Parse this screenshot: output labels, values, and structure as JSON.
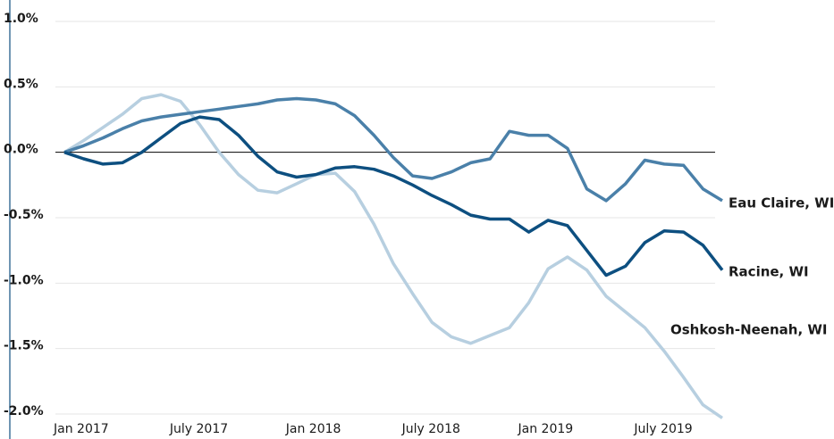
{
  "chart_data": {
    "type": "line",
    "categories": [
      "Jan 2017",
      null,
      null,
      null,
      null,
      null,
      "July 2017",
      null,
      null,
      null,
      null,
      null,
      "Jan 2018",
      null,
      null,
      null,
      null,
      null,
      "July 2018",
      null,
      null,
      null,
      null,
      null,
      "Jan 2019",
      null,
      null,
      null,
      null,
      null,
      "July 2019",
      null,
      null,
      null,
      null
    ],
    "series": [
      {
        "name": "Eau Claire, WI",
        "color": "#4a80a9",
        "values": [
          0,
          0.05,
          0.11,
          0.18,
          0.24,
          0.27,
          0.29,
          0.31,
          0.33,
          0.35,
          0.37,
          0.4,
          0.41,
          0.4,
          0.37,
          0.28,
          0.13,
          -0.04,
          -0.18,
          -0.2,
          -0.15,
          -0.08,
          -0.05,
          0.16,
          0.13,
          0.13,
          0.03,
          -0.28,
          -0.37,
          -0.24,
          -0.06,
          -0.09,
          -0.1,
          -0.28,
          -0.37
        ]
      },
      {
        "name": "Racine, WI",
        "color": "#0d4f80",
        "values": [
          0,
          -0.05,
          -0.09,
          -0.08,
          0,
          0.11,
          0.22,
          0.27,
          0.25,
          0.13,
          -0.03,
          -0.15,
          -0.19,
          -0.17,
          -0.12,
          -0.11,
          -0.13,
          -0.18,
          -0.25,
          -0.33,
          -0.4,
          -0.48,
          -0.51,
          -0.51,
          -0.61,
          -0.52,
          -0.56,
          -0.75,
          -0.94,
          -0.87,
          -0.69,
          -0.6,
          -0.61,
          -0.71,
          -0.9
        ]
      },
      {
        "name": "Oshkosh-Neenah, WI",
        "color": "#b7cfe0",
        "values": [
          0,
          0.09,
          0.19,
          0.29,
          0.41,
          0.44,
          0.39,
          0.21,
          0,
          -0.17,
          -0.29,
          -0.31,
          -0.24,
          -0.17,
          -0.16,
          -0.3,
          -0.55,
          -0.85,
          -1.08,
          -1.3,
          -1.41,
          -1.46,
          -1.4,
          -1.34,
          -1.15,
          -0.89,
          -0.8,
          -0.9,
          -1.1,
          -1.22,
          -1.34,
          -1.52,
          -1.72,
          -1.93,
          -2.03
        ]
      }
    ],
    "ylim": [
      -2.0,
      1.0
    ],
    "yticks": [
      {
        "value": -2.0,
        "label": "-2.0%"
      },
      {
        "value": -1.5,
        "label": "-1.5%"
      },
      {
        "value": -1.0,
        "label": "-1.0%"
      },
      {
        "value": -0.5,
        "label": "-0.5%"
      },
      {
        "value": 0,
        "label": "0.0%"
      },
      {
        "value": 0.5,
        "label": "0.5%"
      },
      {
        "value": 1.0,
        "label": "1.0%"
      }
    ],
    "grid": true
  }
}
